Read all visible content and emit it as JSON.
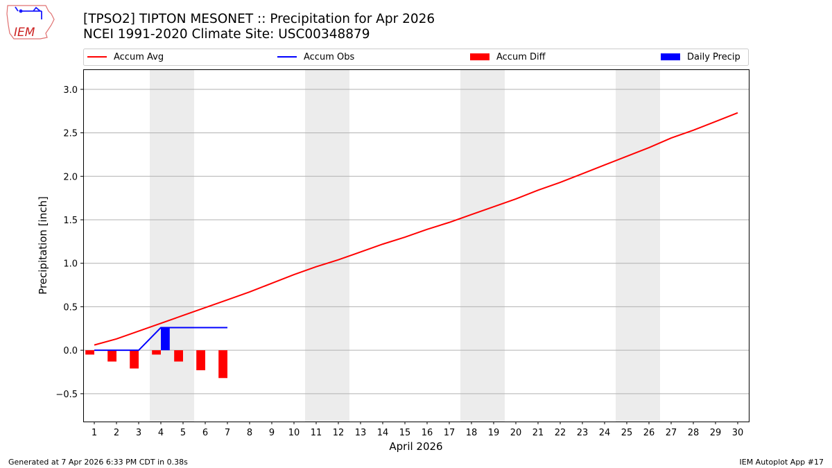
{
  "header": {
    "title": "[TPSO2] TIPTON MESONET :: Precipitation for Apr 2026",
    "subtitle": "NCEI 1991-2020 Climate Site: USC00348879",
    "logo_text": "IEM"
  },
  "footer": {
    "left": "Generated at 7 Apr 2026 6:33 PM CDT in 0.38s",
    "right": "IEM Autoplot App #17"
  },
  "chart_data": {
    "type": "bar+line",
    "xlabel": "April 2026",
    "ylabel": "Precipitation [inch]",
    "xlim": [
      0.5,
      30.5
    ],
    "ylim": [
      -0.82,
      3.23
    ],
    "yticks": [
      -0.5,
      0.0,
      0.5,
      1.0,
      1.5,
      2.0,
      2.5,
      3.0
    ],
    "ytick_labels": [
      "−0.5",
      "0.0",
      "0.5",
      "1.0",
      "1.5",
      "2.0",
      "2.5",
      "3.0"
    ],
    "days": [
      1,
      2,
      3,
      4,
      5,
      6,
      7,
      8,
      9,
      10,
      11,
      12,
      13,
      14,
      15,
      16,
      17,
      18,
      19,
      20,
      21,
      22,
      23,
      24,
      25,
      26,
      27,
      28,
      29,
      30
    ],
    "grid": "y",
    "legend_placement": "top, above plot",
    "weekend_shading": [
      [
        4,
        5
      ],
      [
        11,
        12
      ],
      [
        18,
        19
      ],
      [
        25,
        26
      ]
    ],
    "series": [
      {
        "name": "Accum Avg",
        "kind": "line",
        "color": "#ff0000",
        "days": [
          1,
          2,
          3,
          4,
          5,
          6,
          7,
          8,
          9,
          10,
          11,
          12,
          13,
          14,
          15,
          16,
          17,
          18,
          19,
          20,
          21,
          22,
          23,
          24,
          25,
          26,
          27,
          28,
          29,
          30
        ],
        "values": [
          0.06,
          0.13,
          0.22,
          0.31,
          0.4,
          0.49,
          0.58,
          0.67,
          0.77,
          0.87,
          0.96,
          1.04,
          1.13,
          1.22,
          1.3,
          1.39,
          1.47,
          1.56,
          1.65,
          1.74,
          1.84,
          1.93,
          2.03,
          2.13,
          2.23,
          2.33,
          2.44,
          2.53,
          2.63,
          2.73
        ]
      },
      {
        "name": "Accum Obs",
        "kind": "line",
        "color": "#0000ff",
        "days": [
          1,
          2,
          3,
          4,
          5,
          6,
          7
        ],
        "values": [
          0.0,
          0.0,
          0.0,
          0.26,
          0.26,
          0.26,
          0.26
        ]
      },
      {
        "name": "Accum Diff",
        "kind": "bar",
        "color": "#ff0000",
        "days": [
          1,
          2,
          3,
          4,
          5,
          6,
          7
        ],
        "values": [
          -0.05,
          -0.13,
          -0.21,
          -0.05,
          -0.13,
          -0.23,
          -0.32
        ]
      },
      {
        "name": "Daily Precip",
        "kind": "bar",
        "color": "#0000ff",
        "days": [
          1,
          2,
          3,
          4,
          5,
          6,
          7
        ],
        "values": [
          0,
          0,
          0,
          0.26,
          0,
          0,
          0
        ]
      }
    ]
  }
}
